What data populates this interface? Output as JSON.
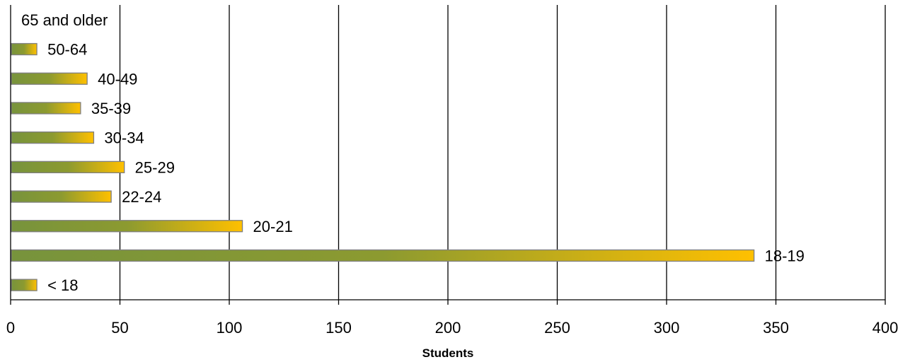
{
  "chart_data": {
    "type": "bar",
    "orientation": "horizontal",
    "categories": [
      "< 18",
      "18-19",
      "20-21",
      "22-24",
      "25-29",
      "30-34",
      "35-39",
      "40-49",
      "50-64",
      "65 and older"
    ],
    "values": [
      12,
      340,
      106,
      46,
      52,
      38,
      32,
      35,
      12,
      0
    ],
    "title": "",
    "xlabel": "Students",
    "ylabel": "",
    "xlim": [
      0,
      400
    ],
    "x_ticks": [
      0,
      50,
      100,
      150,
      200,
      250,
      300,
      350,
      400
    ],
    "grid": "vertical major gridlines",
    "legend": "none",
    "data_labels": "category name shown at end of each bar",
    "colors": {
      "bar_gradient_start": "#77933C",
      "bar_gradient_end": "#FFC000",
      "bar_border": "#7F7F7F",
      "gridline": "#000000"
    }
  }
}
